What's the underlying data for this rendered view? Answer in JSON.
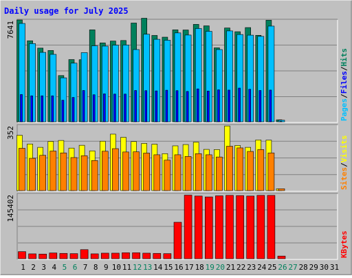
{
  "title": "Daily usage for July 2025",
  "colors": {
    "background": "#c0c0c0",
    "title": "#0000ff",
    "hits": "#00805c",
    "files": "#0000ff",
    "pages": "#00c0ff",
    "visits": "#ffff00",
    "sites": "#ff8000",
    "kbytes": "#ff0000",
    "weekend_day": "#00805c",
    "weekday": "#000000"
  },
  "chart_data": [
    {
      "type": "bar",
      "panel": "hits-files-pages",
      "max_label": "7641",
      "ylim": [
        0,
        7641
      ],
      "legend": [
        "Pages",
        "Files",
        "Hits"
      ],
      "categories": [
        "1",
        "2",
        "3",
        "4",
        "5",
        "6",
        "7",
        "8",
        "9",
        "10",
        "11",
        "12",
        "13",
        "14",
        "15",
        "16",
        "17",
        "18",
        "19",
        "20",
        "21",
        "22",
        "23",
        "24",
        "25",
        "26",
        "27",
        "28",
        "29",
        "30",
        "31"
      ],
      "series": [
        {
          "name": "Hits",
          "values": [
            7640,
            6080,
            5530,
            5350,
            3470,
            4670,
            4660,
            6900,
            5920,
            6060,
            6100,
            7410,
            7770,
            6480,
            6350,
            6900,
            6890,
            7310,
            7200,
            5550,
            7040,
            6760,
            7070,
            6490,
            7620,
            150,
            0,
            0,
            0,
            0,
            0
          ]
        },
        {
          "name": "Files",
          "values": [
            2050,
            1950,
            1950,
            1950,
            1620,
            1830,
            2350,
            2030,
            2100,
            2080,
            2080,
            2350,
            2340,
            2320,
            2370,
            2340,
            2280,
            2470,
            2310,
            2400,
            2380,
            2530,
            2440,
            2350,
            2380,
            30,
            0,
            0,
            0,
            0,
            0
          ]
        },
        {
          "name": "Pages",
          "values": [
            7380,
            5870,
            5210,
            5060,
            3300,
            4400,
            5190,
            5700,
            5680,
            5750,
            5760,
            5420,
            6570,
            6190,
            6120,
            6670,
            6510,
            7000,
            6790,
            5420,
            6820,
            6550,
            6500,
            6410,
            7180,
            120,
            0,
            0,
            0,
            0,
            0
          ]
        }
      ]
    },
    {
      "type": "bar",
      "panel": "visits-sites",
      "max_label": "352",
      "ylim": [
        0,
        352
      ],
      "legend": [
        "Sites",
        "Visits"
      ],
      "categories": [
        "1",
        "2",
        "3",
        "4",
        "5",
        "6",
        "7",
        "8",
        "9",
        "10",
        "11",
        "12",
        "13",
        "14",
        "15",
        "16",
        "17",
        "18",
        "19",
        "20",
        "21",
        "22",
        "23",
        "24",
        "25",
        "26",
        "27",
        "28",
        "29",
        "30",
        "31"
      ],
      "series": [
        {
          "name": "Visits",
          "values": [
            298,
            251,
            233,
            265,
            270,
            229,
            244,
            214,
            266,
            304,
            287,
            264,
            254,
            250,
            199,
            241,
            248,
            261,
            222,
            221,
            348,
            243,
            233,
            273,
            272,
            10,
            0,
            0,
            0,
            0,
            0
          ]
        },
        {
          "name": "Sites",
          "values": [
            228,
            174,
            190,
            213,
            203,
            178,
            188,
            162,
            212,
            226,
            208,
            209,
            202,
            193,
            164,
            193,
            184,
            199,
            193,
            181,
            239,
            230,
            211,
            221,
            203,
            10,
            0,
            0,
            0,
            0,
            0
          ]
        }
      ]
    },
    {
      "type": "bar",
      "panel": "kbytes",
      "max_label": "145402",
      "ylim": [
        0,
        145402
      ],
      "legend": [
        "KBytes"
      ],
      "categories": [
        "1",
        "2",
        "3",
        "4",
        "5",
        "6",
        "7",
        "8",
        "9",
        "10",
        "11",
        "12",
        "13",
        "14",
        "15",
        "16",
        "17",
        "18",
        "19",
        "20",
        "21",
        "22",
        "23",
        "24",
        "25",
        "26",
        "27",
        "28",
        "29",
        "30",
        "31"
      ],
      "series": [
        {
          "name": "KBytes",
          "values": [
            16000,
            11000,
            10500,
            13000,
            12000,
            11500,
            20500,
            11000,
            12500,
            12500,
            13500,
            13500,
            12500,
            12000,
            11500,
            82000,
            143000,
            141000,
            139000,
            141500,
            142500,
            142000,
            141000,
            142500,
            142500,
            6000,
            0,
            0,
            0,
            0,
            0
          ]
        }
      ]
    }
  ],
  "x_labels": [
    "1",
    "2",
    "3",
    "4",
    "5",
    "6",
    "7",
    "8",
    "9",
    "10",
    "11",
    "12",
    "13",
    "14",
    "15",
    "16",
    "17",
    "18",
    "19",
    "20",
    "21",
    "22",
    "23",
    "24",
    "25",
    "26",
    "27",
    "28",
    "29",
    "30",
    "31"
  ],
  "weekend_days": [
    "5",
    "6",
    "12",
    "13",
    "19",
    "20",
    "26",
    "27"
  ]
}
